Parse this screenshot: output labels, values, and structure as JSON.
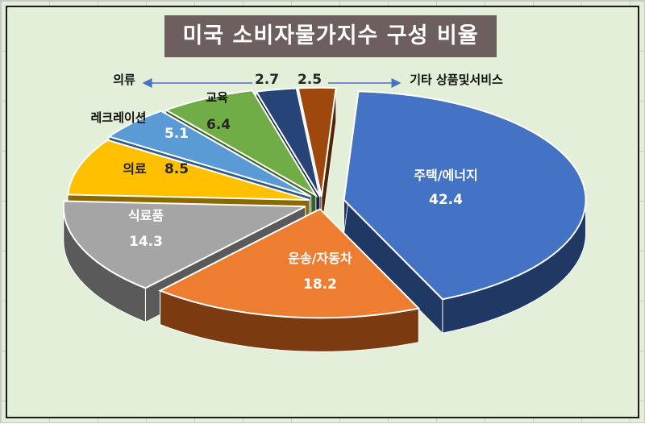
{
  "chart_data": {
    "type": "pie",
    "title": "미국 소비자물가지수 구성 비율",
    "slices": [
      {
        "label": "주택/에너지",
        "value": 42.4,
        "color": "#4472c4",
        "dark": "#1f3864"
      },
      {
        "label": "운송/자동차",
        "value": 18.2,
        "color": "#ed7d31",
        "dark": "#7b3a10"
      },
      {
        "label": "식료품",
        "value": 14.3,
        "color": "#a5a5a5",
        "dark": "#5a5a5a"
      },
      {
        "label": "의료",
        "value": 8.5,
        "color": "#ffc000",
        "dark": "#8a6a00"
      },
      {
        "label": "레크레이션",
        "value": 5.1,
        "color": "#5b9bd5",
        "dark": "#2e5a85"
      },
      {
        "label": "교육",
        "value": 6.4,
        "color": "#70ad47",
        "dark": "#3b5e24"
      },
      {
        "label": "의류",
        "value": 2.7,
        "color": "#264478",
        "dark": "#14233f"
      },
      {
        "label": "기타 상품및서비스",
        "value": 2.5,
        "color": "#9e480e",
        "dark": "#4f2407"
      }
    ]
  }
}
